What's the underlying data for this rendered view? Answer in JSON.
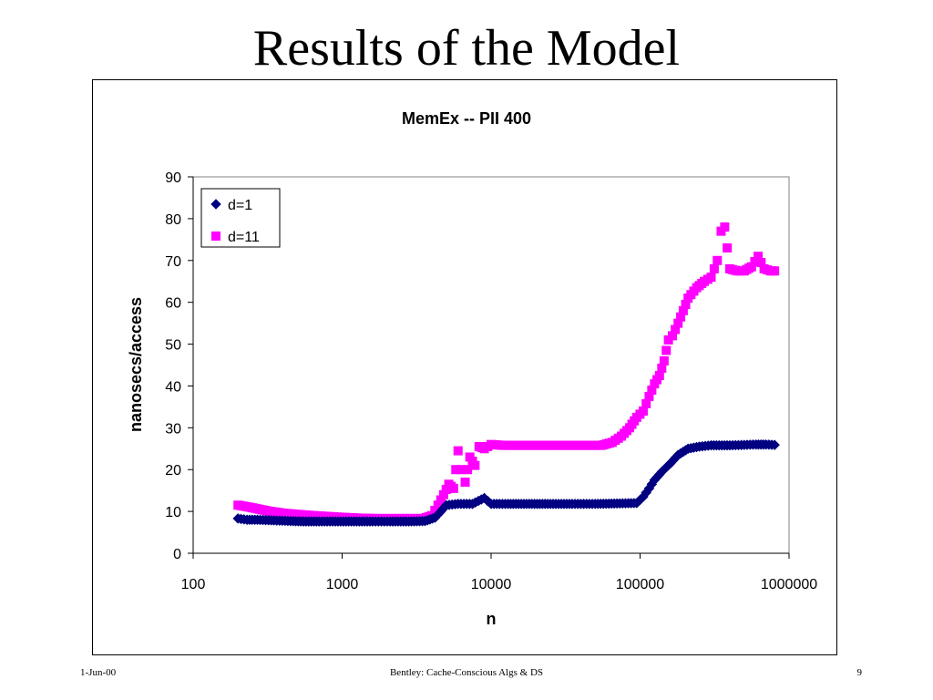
{
  "slide": {
    "title": "Results of the Model",
    "footer_date": "1-Jun-00",
    "footer_center": "Bentley: Cache-Conscious Algs & DS",
    "page_number": "9"
  },
  "chart_data": {
    "type": "scatter",
    "title": "MemEx -- PII 400",
    "xlabel": "n",
    "ylabel": "nanosecs/access",
    "x_scale": "log",
    "xlim": [
      100,
      1000000
    ],
    "ylim": [
      0,
      90
    ],
    "x_ticks": [
      "100",
      "1000",
      "10000",
      "100000",
      "1000000"
    ],
    "y_ticks": [
      "0",
      "10",
      "20",
      "30",
      "40",
      "50",
      "60",
      "70",
      "80",
      "90"
    ],
    "grid": false,
    "legend_position": "top-left",
    "series": [
      {
        "name": "d=1",
        "color": "#000080",
        "marker": "diamond",
        "points": [
          [
            200,
            8.3
          ],
          [
            230,
            8.0
          ],
          [
            270,
            8.0
          ],
          [
            320,
            7.9
          ],
          [
            380,
            7.8
          ],
          [
            450,
            7.7
          ],
          [
            550,
            7.6
          ],
          [
            700,
            7.6
          ],
          [
            900,
            7.6
          ],
          [
            1200,
            7.6
          ],
          [
            1600,
            7.6
          ],
          [
            2100,
            7.6
          ],
          [
            2800,
            7.6
          ],
          [
            3600,
            7.7
          ],
          [
            4200,
            8.5
          ],
          [
            4600,
            10.0
          ],
          [
            5000,
            11.5
          ],
          [
            6000,
            11.8
          ],
          [
            7500,
            11.8
          ],
          [
            9000,
            13.2
          ],
          [
            10000,
            11.8
          ],
          [
            13000,
            11.8
          ],
          [
            18000,
            11.8
          ],
          [
            25000,
            11.8
          ],
          [
            35000,
            11.8
          ],
          [
            50000,
            11.8
          ],
          [
            70000,
            11.9
          ],
          [
            95000,
            12.0
          ],
          [
            105000,
            13.5
          ],
          [
            115000,
            15.5
          ],
          [
            125000,
            17.5
          ],
          [
            140000,
            19.5
          ],
          [
            160000,
            21.5
          ],
          [
            180000,
            23.5
          ],
          [
            210000,
            25.0
          ],
          [
            250000,
            25.5
          ],
          [
            300000,
            25.8
          ],
          [
            400000,
            25.8
          ],
          [
            500000,
            25.9
          ],
          [
            600000,
            26.0
          ],
          [
            700000,
            26.0
          ],
          [
            800000,
            25.9
          ]
        ]
      },
      {
        "name": "d=11",
        "color": "#FF00FF",
        "marker": "square",
        "points": [
          [
            200,
            11.5
          ],
          [
            240,
            11.0
          ],
          [
            280,
            10.5
          ],
          [
            330,
            10.0
          ],
          [
            400,
            9.6
          ],
          [
            500,
            9.3
          ],
          [
            650,
            9.0
          ],
          [
            800,
            8.8
          ],
          [
            1000,
            8.6
          ],
          [
            1300,
            8.4
          ],
          [
            1700,
            8.3
          ],
          [
            2200,
            8.3
          ],
          [
            2800,
            8.3
          ],
          [
            3500,
            8.3
          ],
          [
            4000,
            9.0
          ],
          [
            4400,
            11.5
          ],
          [
            4800,
            14.0
          ],
          [
            5200,
            16.5
          ],
          [
            5600,
            15.5
          ],
          [
            6000,
            24.5
          ],
          [
            6300,
            20.0
          ],
          [
            6700,
            17.0
          ],
          [
            7200,
            23.0
          ],
          [
            7800,
            21.0
          ],
          [
            8300,
            25.5
          ],
          [
            9000,
            25.0
          ],
          [
            10000,
            26.0
          ],
          [
            12000,
            25.8
          ],
          [
            15000,
            25.8
          ],
          [
            20000,
            25.8
          ],
          [
            25000,
            25.8
          ],
          [
            30000,
            25.8
          ],
          [
            40000,
            25.8
          ],
          [
            55000,
            25.8
          ],
          [
            65000,
            26.5
          ],
          [
            75000,
            28.0
          ],
          [
            85000,
            30.0
          ],
          [
            95000,
            32.5
          ],
          [
            105000,
            34.0
          ],
          [
            115000,
            37.5
          ],
          [
            125000,
            40.5
          ],
          [
            135000,
            42.5
          ],
          [
            145000,
            46.0
          ],
          [
            155000,
            51.0
          ],
          [
            165000,
            52.0
          ],
          [
            180000,
            55.0
          ],
          [
            195000,
            58.0
          ],
          [
            210000,
            61.0
          ],
          [
            240000,
            63.5
          ],
          [
            270000,
            65.0
          ],
          [
            300000,
            66.0
          ],
          [
            330000,
            70.0
          ],
          [
            350000,
            77.0
          ],
          [
            370000,
            78.0
          ],
          [
            400000,
            68.0
          ],
          [
            450000,
            67.5
          ],
          [
            500000,
            67.5
          ],
          [
            560000,
            68.5
          ],
          [
            620000,
            71.0
          ],
          [
            680000,
            68.0
          ],
          [
            750000,
            67.5
          ],
          [
            800000,
            67.5
          ]
        ]
      }
    ]
  }
}
